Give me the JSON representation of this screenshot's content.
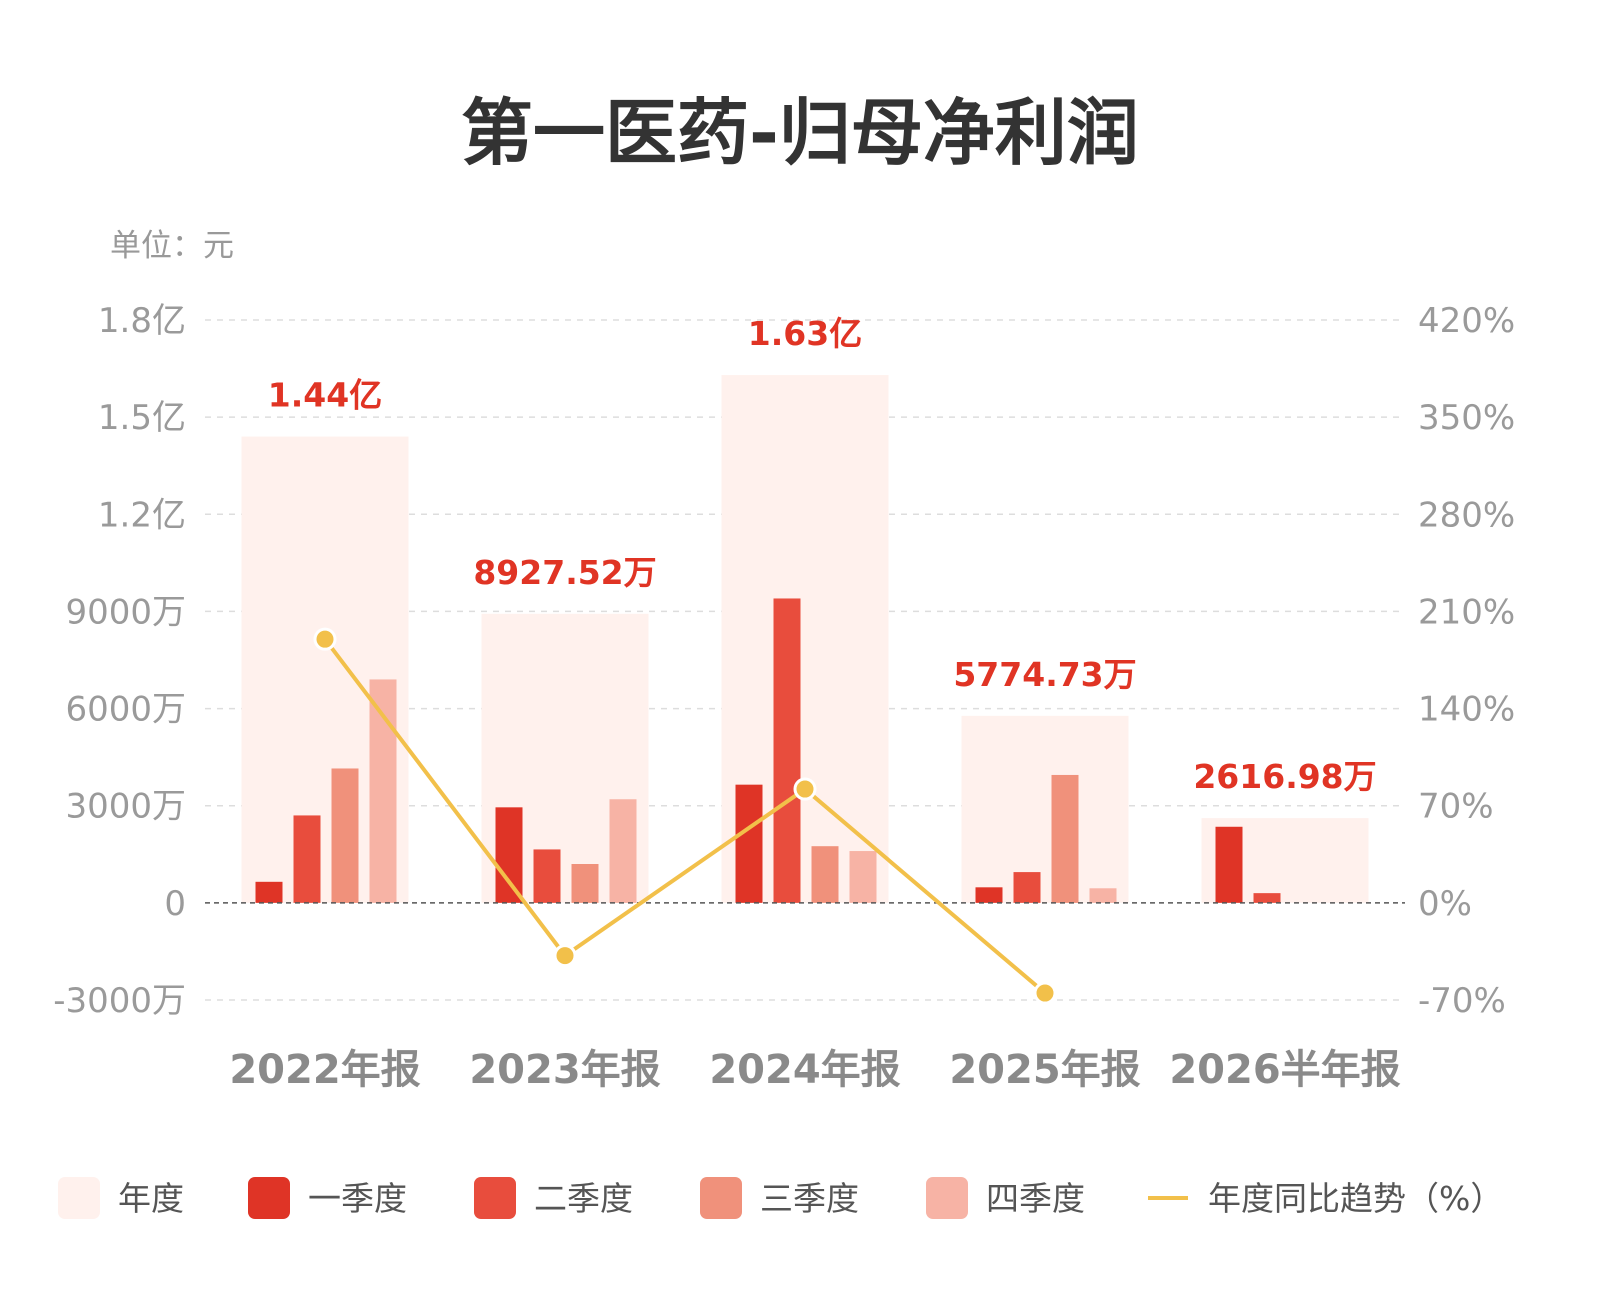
{
  "chart_data": {
    "type": "bar",
    "title": "第一医药-归母净利润",
    "unit_label": "单位：元",
    "categories": [
      "2022年报",
      "2023年报",
      "2024年报",
      "2025年报",
      "2026半年报"
    ],
    "left_axis": {
      "range": [
        -30000000,
        180000000
      ],
      "ticks": [
        {
          "value": 180000000,
          "label": "1.8亿"
        },
        {
          "value": 150000000,
          "label": "1.5亿"
        },
        {
          "value": 120000000,
          "label": "1.2亿"
        },
        {
          "value": 90000000,
          "label": "9000万"
        },
        {
          "value": 60000000,
          "label": "6000万"
        },
        {
          "value": 30000000,
          "label": "3000万"
        },
        {
          "value": 0,
          "label": "0"
        },
        {
          "value": -30000000,
          "label": "-3000万"
        }
      ]
    },
    "right_axis": {
      "range": [
        -70,
        420
      ],
      "ticks": [
        {
          "value": 420,
          "label": "420%"
        },
        {
          "value": 350,
          "label": "350%"
        },
        {
          "value": 280,
          "label": "280%"
        },
        {
          "value": 210,
          "label": "210%"
        },
        {
          "value": 140,
          "label": "140%"
        },
        {
          "value": 70,
          "label": "70%"
        },
        {
          "value": 0,
          "label": "0%"
        },
        {
          "value": -70,
          "label": "-70%"
        }
      ]
    },
    "grid": true,
    "annual_values": [
      144000000,
      89275200,
      163000000,
      57747300,
      26169800
    ],
    "annual_labels": [
      "1.44亿",
      "8927.52万",
      "1.63亿",
      "5774.73万",
      "2616.98万"
    ],
    "series": [
      {
        "name": "一季度",
        "color": "#df3426",
        "values": [
          6500000,
          29500000,
          36500000,
          4800000,
          23500000
        ]
      },
      {
        "name": "二季度",
        "color": "#e84d3d",
        "values": [
          27000000,
          16500000,
          94000000,
          9500000,
          3000000
        ]
      },
      {
        "name": "三季度",
        "color": "#f0917b",
        "values": [
          41500000,
          12000000,
          17500000,
          39500000,
          null
        ]
      },
      {
        "name": "四季度",
        "color": "#f7b3a5",
        "values": [
          69000000,
          32000000,
          16000000,
          4500000,
          null
        ]
      }
    ],
    "trend": {
      "name": "年度同比趋势（%）",
      "color": "#f2c04a",
      "values": [
        190,
        -38,
        82,
        -65,
        null
      ]
    },
    "legend": {
      "position": "bottom",
      "items": [
        {
          "label": "年度",
          "color": "#fff1ed",
          "kind": "box"
        },
        {
          "label": "一季度",
          "color": "#df3426",
          "kind": "box"
        },
        {
          "label": "二季度",
          "color": "#e84d3d",
          "kind": "box"
        },
        {
          "label": "三季度",
          "color": "#f0917b",
          "kind": "box"
        },
        {
          "label": "四季度",
          "color": "#f7b3a5",
          "kind": "box"
        },
        {
          "label": "年度同比趋势（%）",
          "color": "#f2c04a",
          "kind": "line"
        }
      ]
    },
    "colors": {
      "annual_box": "#fff1ed",
      "value_label": "#e03424",
      "grid": "#dddddd",
      "zero_line": "#555555"
    }
  }
}
